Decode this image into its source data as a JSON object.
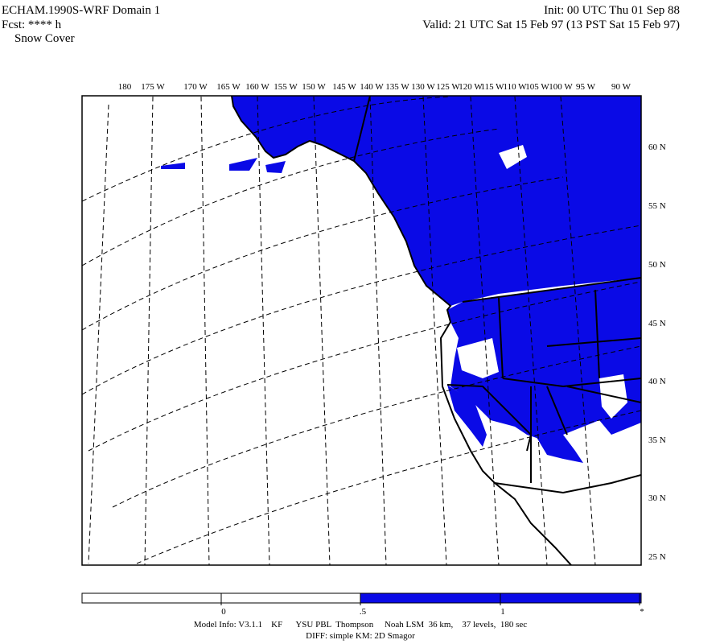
{
  "header": {
    "model": "ECHAM.1990S-WRF Domain 1",
    "forecast": "Fcst: **** h",
    "field": "Snow Cover",
    "init": "Init: 00 UTC Thu 01 Sep 88",
    "valid": "Valid: 21 UTC Sat 15 Feb 97 (13 PST Sat 15 Feb 97)"
  },
  "map": {
    "longitude_labels": [
      "180",
      "175 W",
      "170 W",
      "165 W",
      "160 W",
      "155 W",
      "150 W",
      "145 W",
      "140 W",
      "135 W",
      "130 W",
      "125 W",
      "120 W",
      "115 W",
      "110 W",
      "105 W",
      "100 W",
      "95 W",
      "90 W"
    ],
    "latitude_labels": [
      "60 N",
      "55 N",
      "50 N",
      "45 N",
      "40 N",
      "35 N",
      "30 N",
      "25 N"
    ]
  },
  "colorbar": {
    "labels": [
      "0",
      ".5",
      "1",
      "*"
    ]
  },
  "footer": {
    "model_info": "Model Info: V3.1.1    KF      YSU PBL  Thompson     Noah LSM  36 km,    37 levels,  180 sec",
    "diff": "DIFF: simple KM: 2D Smagor"
  }
}
